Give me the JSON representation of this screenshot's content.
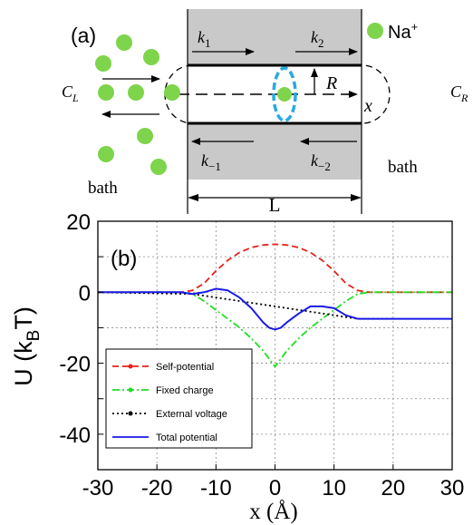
{
  "schematic": {
    "panel_label": "(a)",
    "ion_label": "Na",
    "ion_charge": "+",
    "k1": "k",
    "k1_sub": "1",
    "k2": "k",
    "k2_sub": "2",
    "km1": "k",
    "km1_sub": "−1",
    "km2": "k",
    "km2_sub": "−2",
    "radius_label": "R",
    "axis_label": "x",
    "cl_main": "C",
    "cl_sub": "L",
    "cr_main": "C",
    "cr_sub": "R",
    "bath_left": "bath",
    "bath_right": "bath",
    "length_label": "L",
    "colors": {
      "ion": "#7ed44b",
      "channel": "#c9c9c9",
      "ellipse": "#29a9e0"
    }
  },
  "chart_data": {
    "type": "line",
    "panel_label": "(b)",
    "ylabel_main": "U (k",
    "ylabel_sub": "B",
    "ylabel_end": "T)",
    "xlabel": "x (Å)",
    "xlim": [
      -30,
      30
    ],
    "ylim": [
      -50,
      20
    ],
    "xticks": [
      -30,
      -20,
      -10,
      0,
      10,
      20,
      30
    ],
    "yticks": [
      20,
      0,
      -20,
      -40
    ],
    "grid": true,
    "legend_position": "bottom-left",
    "series": [
      {
        "name": "Self-potential",
        "color": "#e8221a",
        "style": "dashed",
        "x": [
          -30,
          -16,
          -14,
          -12,
          -10,
          -8,
          -6,
          -4,
          -2,
          0,
          2,
          4,
          6,
          8,
          10,
          12,
          14,
          16,
          30
        ],
        "y": [
          0,
          0,
          0.5,
          2.5,
          6,
          9,
          11.2,
          12.6,
          13.3,
          13.5,
          13.3,
          12.6,
          11.2,
          9,
          6,
          2.5,
          0.5,
          0,
          0
        ]
      },
      {
        "name": "Fixed charge",
        "color": "#22dd22",
        "style": "dashdot",
        "x": [
          -30,
          -16,
          -14,
          -12,
          -10,
          -8,
          -6,
          -4,
          -2,
          0,
          2,
          4,
          6,
          8,
          10,
          12,
          14,
          16,
          30
        ],
        "y": [
          0,
          0,
          -0.5,
          -2.5,
          -5,
          -7.5,
          -10,
          -13,
          -16.5,
          -21,
          -16.5,
          -13,
          -10,
          -7.5,
          -5,
          -2.5,
          -0.5,
          0,
          0
        ]
      },
      {
        "name": "External voltage",
        "color": "#000000",
        "style": "dotted",
        "x": [
          -30,
          -14,
          14,
          20
        ],
        "y": [
          0,
          -0.5,
          -7.5,
          -7.5
        ]
      },
      {
        "name": "Total potential",
        "color": "#1a1ae6",
        "style": "solid",
        "x": [
          -30,
          -16,
          -14,
          -12,
          -10,
          -8,
          -6,
          -4,
          -2,
          -1,
          0,
          1,
          2,
          4,
          6,
          8,
          10,
          12,
          14,
          16,
          20,
          30
        ],
        "y": [
          0,
          0,
          -0.5,
          0,
          1,
          0.5,
          -1.5,
          -4.5,
          -8.5,
          -10,
          -10.5,
          -10,
          -8.5,
          -6,
          -4,
          -4,
          -4.5,
          -6.5,
          -7.5,
          -7.5,
          -7.5,
          -7.5
        ]
      }
    ]
  }
}
